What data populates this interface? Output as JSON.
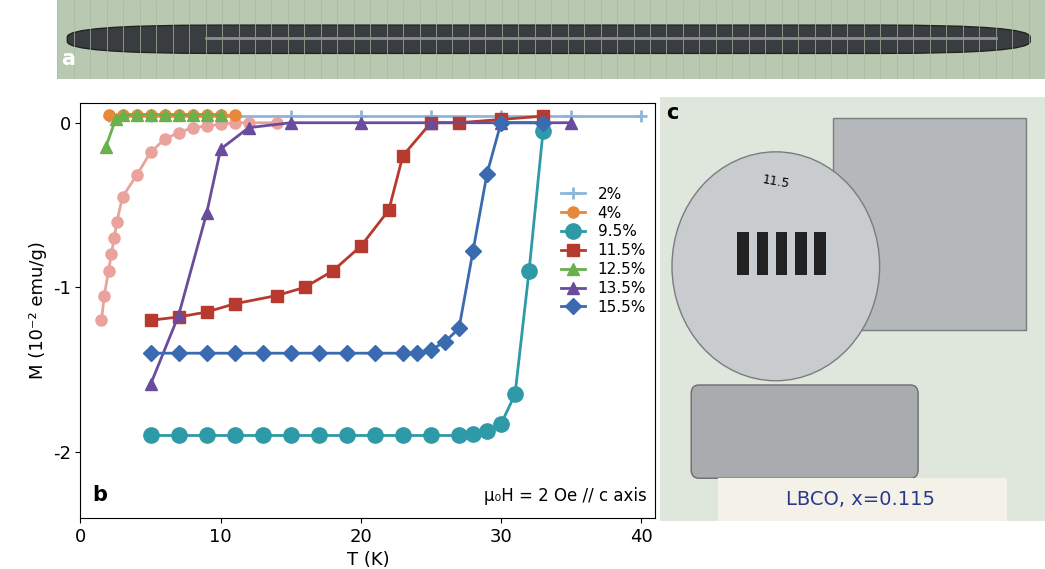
{
  "chart_data": {
    "type": "line",
    "panel_label": "b",
    "xlabel": "T (K)",
    "ylabel": "M (10⁻² emu/g)",
    "annotations": [
      "μ₀H = 2 Oe // c axis"
    ],
    "xlim": [
      0,
      41
    ],
    "ylim": [
      -2.4,
      0.12
    ],
    "xticks": [
      0,
      10,
      20,
      30,
      40
    ],
    "yticks": [
      -2,
      -1,
      0
    ],
    "legend": "right",
    "grid": false,
    "series": [
      {
        "name": null,
        "color": "#eaa39c",
        "marker": "circle",
        "line_style": "solid",
        "x": [
          1.5,
          1.7,
          2.0,
          2.2,
          2.4,
          2.6,
          3.0,
          4.0,
          5.0,
          6.0,
          7.0,
          8.0,
          9.0,
          10.0,
          11.0,
          12.0,
          14.0
        ],
        "values": [
          -1.2,
          -1.05,
          -0.9,
          -0.8,
          -0.7,
          -0.6,
          -0.45,
          -0.32,
          -0.18,
          -0.1,
          -0.06,
          -0.03,
          -0.02,
          -0.01,
          0.0,
          0.0,
          0.0
        ]
      },
      {
        "name": "2%",
        "color": "#8fb6d8",
        "marker": "plus",
        "line_style": "solid",
        "x": [
          2,
          5,
          10,
          15,
          20,
          25,
          30,
          35,
          40
        ],
        "values": [
          0.04,
          0.04,
          0.04,
          0.04,
          0.04,
          0.04,
          0.04,
          0.04,
          0.04
        ]
      },
      {
        "name": "4%",
        "color": "#e8883a",
        "marker": "circle",
        "line_style": "solid",
        "x": [
          2,
          3,
          4,
          5,
          6,
          7,
          8,
          9,
          10,
          11
        ],
        "values": [
          0.05,
          0.05,
          0.05,
          0.05,
          0.05,
          0.05,
          0.05,
          0.05,
          0.05,
          0.05
        ]
      },
      {
        "name": "9.5%",
        "color": "#2e9aa8",
        "marker": "circle",
        "line_style": "solid",
        "x": [
          5,
          7,
          9,
          11,
          13,
          15,
          17,
          19,
          21,
          23,
          25,
          27,
          28,
          29,
          30,
          31,
          32,
          33
        ],
        "values": [
          -1.9,
          -1.9,
          -1.9,
          -1.9,
          -1.9,
          -1.9,
          -1.9,
          -1.9,
          -1.9,
          -1.9,
          -1.9,
          -1.9,
          -1.89,
          -1.87,
          -1.83,
          -1.65,
          -0.9,
          -0.05
        ]
      },
      {
        "name": "11.5%",
        "color": "#b83a2e",
        "marker": "square",
        "line_style": "solid",
        "x": [
          5,
          7,
          9,
          11,
          14,
          16,
          18,
          20,
          22,
          23,
          25,
          27,
          30,
          33
        ],
        "values": [
          -1.2,
          -1.18,
          -1.15,
          -1.1,
          -1.05,
          -1.0,
          -0.9,
          -0.75,
          -0.53,
          -0.2,
          0.0,
          0.0,
          0.02,
          0.04
        ]
      },
      {
        "name": "12.5%",
        "color": "#6ab04c",
        "marker": "triangle",
        "line_style": "solid",
        "x": [
          1.8,
          2.5,
          3,
          4,
          5,
          6,
          7,
          8,
          9,
          10
        ],
        "values": [
          -0.15,
          0.02,
          0.05,
          0.05,
          0.05,
          0.05,
          0.05,
          0.05,
          0.05,
          0.05
        ]
      },
      {
        "name": "13.5%",
        "color": "#6a4c9c",
        "marker": "triangle",
        "line_style": "solid",
        "x": [
          5,
          7,
          9,
          10,
          12,
          15,
          20,
          25,
          30,
          35
        ],
        "values": [
          -1.59,
          -1.17,
          -0.55,
          -0.16,
          -0.03,
          0.0,
          0.0,
          0.0,
          0.0,
          0.0
        ]
      },
      {
        "name": "15.5%",
        "color": "#3a6ab0",
        "marker": "diamond",
        "line_style": "solid",
        "x": [
          5,
          7,
          9,
          11,
          13,
          15,
          17,
          19,
          21,
          23,
          24,
          25,
          26,
          27,
          28,
          29,
          30,
          33
        ],
        "values": [
          -1.4,
          -1.4,
          -1.4,
          -1.4,
          -1.4,
          -1.4,
          -1.4,
          -1.4,
          -1.4,
          -1.4,
          -1.4,
          -1.38,
          -1.33,
          -1.25,
          -0.78,
          -0.31,
          0.0,
          0.0
        ]
      }
    ]
  },
  "photos": [
    {
      "label": "a",
      "texts": []
    },
    {
      "label": "c",
      "texts": [
        "11.5",
        "LBCO, x=0.115"
      ]
    }
  ]
}
